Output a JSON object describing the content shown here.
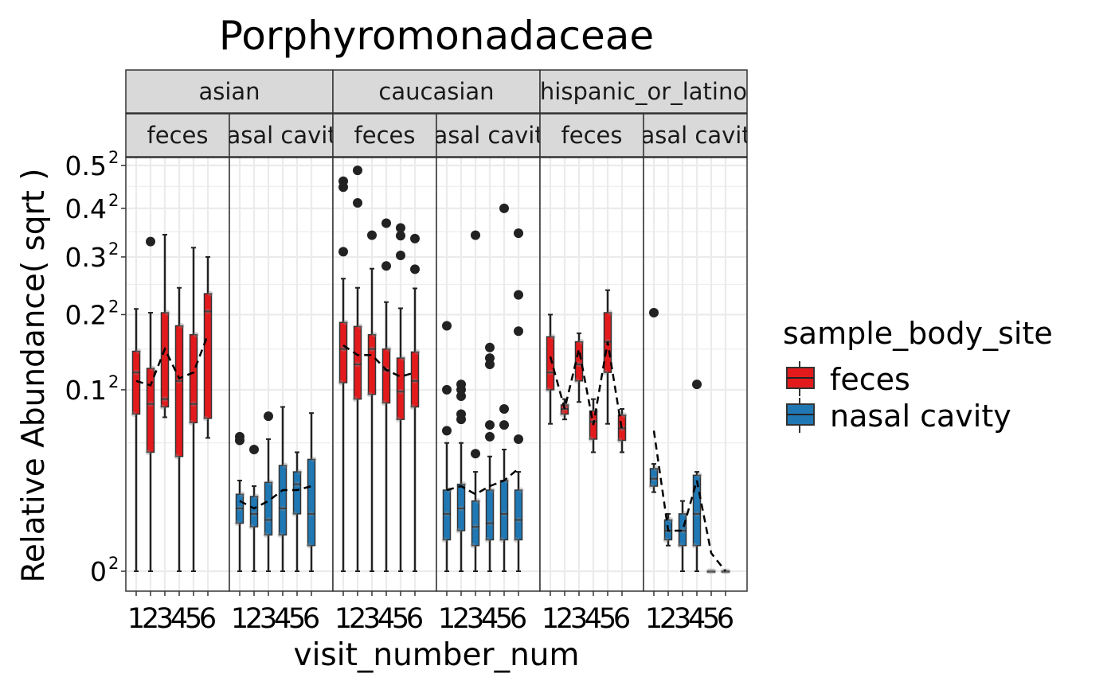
{
  "chart_data": {
    "type": "box",
    "title": "Porphyromonadaceae",
    "xlabel": "visit_number_num",
    "ylabel": "Relative Abundance( sqrt )",
    "y_scale": "sqrt",
    "y_ticks": [
      {
        "value": 0,
        "base": "0",
        "exp": "2"
      },
      {
        "value": 0.1,
        "base": "0.1",
        "exp": "2"
      },
      {
        "value": 0.2,
        "base": "0.2",
        "exp": "2"
      },
      {
        "value": 0.3,
        "base": "0.3",
        "exp": "2"
      },
      {
        "value": 0.4,
        "base": "0.4",
        "exp": "2"
      },
      {
        "value": 0.5,
        "base": "0.5",
        "exp": "2"
      }
    ],
    "x_ticks": [
      "1",
      "2",
      "3",
      "4",
      "5",
      "6"
    ],
    "legend": {
      "title": "sample_body_site",
      "position": "right",
      "entries": [
        {
          "label": "feces",
          "color": "#E31A1C"
        },
        {
          "label": "nasal cavity",
          "color": "#1F78B4"
        }
      ]
    },
    "facet_rows": [
      "asian",
      "caucasian",
      "hispanic_or_latino"
    ],
    "panels": [
      {
        "group": "asian",
        "site": "feces",
        "color": "#E31A1C",
        "boxes": [
          {
            "x": 1,
            "q1": 0.075,
            "median": 0.12,
            "q3": 0.147,
            "wlo": 0,
            "whi": 0.209,
            "outliers": []
          },
          {
            "x": 2,
            "q1": 0.043,
            "median": 0.085,
            "q3": 0.125,
            "wlo": 0,
            "whi": 0.203,
            "outliers": [
              0.33
            ]
          },
          {
            "x": 3,
            "q1": 0.082,
            "median": 0.09,
            "q3": 0.203,
            "wlo": 0.072,
            "whi": 0.344,
            "outliers": []
          },
          {
            "x": 4,
            "q1": 0.04,
            "median": 0.11,
            "q3": 0.183,
            "wlo": 0,
            "whi": 0.244,
            "outliers": []
          },
          {
            "x": 5,
            "q1": 0.067,
            "median": 0.085,
            "q3": 0.17,
            "wlo": 0,
            "whi": 0.318,
            "outliers": []
          },
          {
            "x": 6,
            "q1": 0.071,
            "median": 0.205,
            "q3": 0.234,
            "wlo": 0.054,
            "whi": 0.3,
            "outliers": []
          }
        ],
        "mean_line": [
          0.11,
          0.105,
          0.15,
          0.113,
          0.12,
          0.17
        ]
      },
      {
        "group": "asian",
        "site": "nasal cavity",
        "color": "#1F78B4",
        "boxes": [
          {
            "x": 1,
            "q1": 0.007,
            "median": 0.012,
            "q3": 0.018,
            "wlo": 0,
            "whi": 0.025,
            "outliers": [
              0.052,
              0.055
            ]
          },
          {
            "x": 2,
            "q1": 0.006,
            "median": 0.01,
            "q3": 0.017,
            "wlo": 0,
            "whi": 0.022,
            "outliers": [
              0.045
            ]
          },
          {
            "x": 3,
            "q1": 0.004,
            "median": 0.008,
            "q3": 0.024,
            "wlo": 0,
            "whi": 0.053,
            "outliers": [
              0.073
            ]
          },
          {
            "x": 4,
            "q1": 0.004,
            "median": 0.012,
            "q3": 0.034,
            "wlo": 0,
            "whi": 0.082,
            "outliers": []
          },
          {
            "x": 5,
            "q1": 0.01,
            "median": 0.023,
            "q3": 0.03,
            "wlo": 0,
            "whi": 0.043,
            "outliers": []
          },
          {
            "x": 6,
            "q1": 0.002,
            "median": 0.01,
            "q3": 0.038,
            "wlo": 0,
            "whi": 0.076,
            "outliers": []
          }
        ],
        "mean_line": [
          0.015,
          0.012,
          0.015,
          0.02,
          0.02,
          0.022
        ]
      },
      {
        "group": "caucasian",
        "site": "feces",
        "color": "#E31A1C",
        "boxes": [
          {
            "x": 1,
            "q1": 0.108,
            "median": 0.15,
            "q3": 0.188,
            "wlo": 0,
            "whi": 0.26,
            "outliers": [
              0.31,
              0.448,
              0.462
            ]
          },
          {
            "x": 2,
            "q1": 0.09,
            "median": 0.13,
            "q3": 0.182,
            "wlo": 0,
            "whi": 0.244,
            "outliers": [
              0.412,
              0.488
            ]
          },
          {
            "x": 3,
            "q1": 0.095,
            "median": 0.15,
            "q3": 0.17,
            "wlo": 0,
            "whi": 0.278,
            "outliers": [
              0.343
            ]
          },
          {
            "x": 4,
            "q1": 0.086,
            "median": 0.123,
            "q3": 0.15,
            "wlo": 0,
            "whi": 0.22,
            "outliers": [
              0.283,
              0.368
            ]
          },
          {
            "x": 5,
            "q1": 0.07,
            "median": 0.098,
            "q3": 0.138,
            "wlo": 0,
            "whi": 0.21,
            "outliers": [
              0.303,
              0.342,
              0.358
            ]
          },
          {
            "x": 6,
            "q1": 0.082,
            "median": 0.11,
            "q3": 0.146,
            "wlo": 0,
            "whi": 0.243,
            "outliers": [
              0.277,
              0.336
            ]
          }
        ],
        "mean_line": [
          0.155,
          0.142,
          0.142,
          0.123,
          0.115,
          0.12
        ]
      },
      {
        "group": "caucasian",
        "site": "nasal cavity",
        "color": "#1F78B4",
        "boxes": [
          {
            "x": 1,
            "q1": 0.003,
            "median": 0.01,
            "q3": 0.02,
            "wlo": 0,
            "whi": 0.05,
            "outliers": [
              0.06,
              0.1,
              0.183
            ]
          },
          {
            "x": 2,
            "q1": 0.005,
            "median": 0.012,
            "q3": 0.023,
            "wlo": 0,
            "whi": 0.05,
            "outliers": [
              0.07,
              0.075,
              0.093,
              0.1,
              0.106
            ]
          },
          {
            "x": 3,
            "q1": 0.002,
            "median": 0.006,
            "q3": 0.015,
            "wlo": 0,
            "whi": 0.03,
            "outliers": [
              0.042,
              0.343
            ]
          },
          {
            "x": 4,
            "q1": 0.003,
            "median": 0.007,
            "q3": 0.02,
            "wlo": 0,
            "whi": 0.04,
            "outliers": [
              0.055,
              0.065,
              0.13,
              0.138,
              0.152
            ]
          },
          {
            "x": 5,
            "q1": 0.003,
            "median": 0.01,
            "q3": 0.025,
            "wlo": 0,
            "whi": 0.045,
            "outliers": [
              0.065,
              0.08,
              0.4
            ]
          },
          {
            "x": 6,
            "q1": 0.003,
            "median": 0.008,
            "q3": 0.02,
            "wlo": 0,
            "whi": 0.03,
            "outliers": [
              0.053,
              0.175,
              0.232,
              0.347
            ]
          }
        ],
        "mean_line": [
          0.02,
          0.022,
          0.018,
          0.022,
          0.025,
          0.032
        ]
      },
      {
        "group": "hispanic_or_latino",
        "site": "feces",
        "color": "#E31A1C",
        "boxes": [
          {
            "x": 1,
            "q1": 0.1,
            "median": 0.12,
            "q3": 0.167,
            "wlo": 0.066,
            "whi": 0.2,
            "outliers": []
          },
          {
            "x": 2,
            "q1": 0.075,
            "median": 0.08,
            "q3": 0.084,
            "wlo": 0.07,
            "whi": 0.09,
            "outliers": []
          },
          {
            "x": 3,
            "q1": 0.11,
            "median": 0.13,
            "q3": 0.16,
            "wlo": 0.087,
            "whi": 0.172,
            "outliers": []
          },
          {
            "x": 4,
            "q1": 0.053,
            "median": 0.068,
            "q3": 0.078,
            "wlo": 0.043,
            "whi": 0.09,
            "outliers": []
          },
          {
            "x": 5,
            "q1": 0.12,
            "median": 0.16,
            "q3": 0.203,
            "wlo": 0.066,
            "whi": 0.24,
            "outliers": []
          },
          {
            "x": 6,
            "q1": 0.052,
            "median": 0.062,
            "q3": 0.074,
            "wlo": 0.043,
            "whi": 0.08,
            "outliers": []
          }
        ],
        "mean_line": [
          0.14,
          0.08,
          0.15,
          0.065,
          0.16,
          0.06
        ]
      },
      {
        "group": "hispanic_or_latino",
        "site": "nasal cavity",
        "color": "#1F78B4",
        "boxes": [
          {
            "x": 1,
            "q1": 0.022,
            "median": 0.026,
            "q3": 0.032,
            "wlo": 0.019,
            "whi": 0.035,
            "outliers": [
              0.203
            ]
          },
          {
            "x": 2,
            "q1": 0.003,
            "median": 0.005,
            "q3": 0.008,
            "wlo": 0.002,
            "whi": 0.01,
            "outliers": []
          },
          {
            "x": 3,
            "q1": 0.002,
            "median": 0.005,
            "q3": 0.01,
            "wlo": 0,
            "whi": 0.015,
            "outliers": []
          },
          {
            "x": 4,
            "q1": 0.002,
            "median": 0.01,
            "q3": 0.028,
            "wlo": 0,
            "whi": 0.03,
            "outliers": [
              0.106
            ]
          },
          {
            "x": 5,
            "q1": 0,
            "median": 0,
            "q3": 0,
            "wlo": 0,
            "whi": 0,
            "outliers": []
          },
          {
            "x": 6,
            "q1": 0,
            "median": 0,
            "q3": 0,
            "wlo": 0,
            "whi": 0,
            "outliers": []
          }
        ],
        "mean_line": [
          0.06,
          0.005,
          0.005,
          0.025,
          0.001,
          0
        ]
      }
    ]
  }
}
